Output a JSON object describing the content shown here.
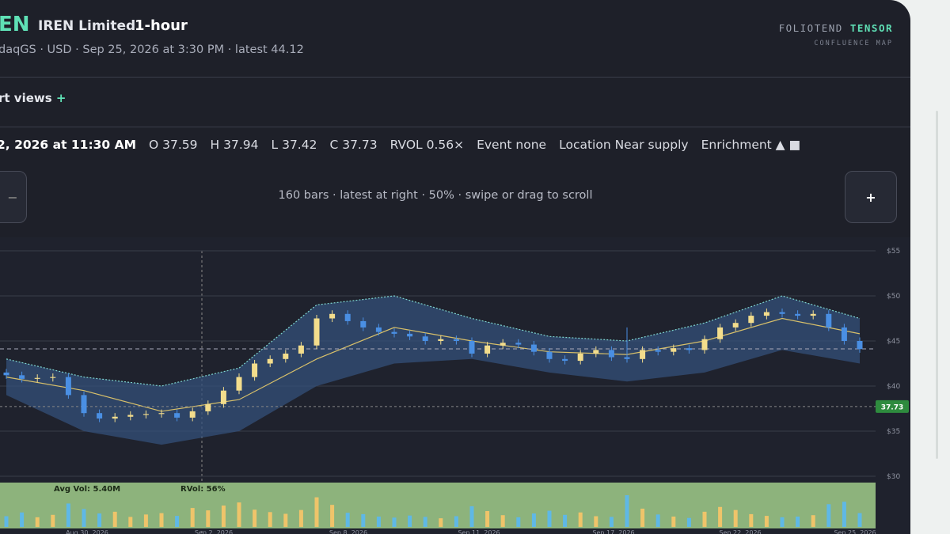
{
  "header": {
    "ticker": "EN",
    "name": "IREN Limited",
    "interval": "1-hour",
    "subtitle": "daqGS · USD · Sep 25, 2026 at 3:30 PM · latest 44.12",
    "brand_a": "FOLIOTEND",
    "brand_b": "TENSOR",
    "brand_sub": "CONFLUENCE MAP"
  },
  "views": {
    "label": "rt views",
    "plus": "+"
  },
  "info_row": [
    "2, 2026 at 11:30 AM",
    "O 37.59",
    "H 37.94",
    "L 37.42",
    "C 37.73",
    "RVOL 0.56×",
    "Event none",
    "Location Near supply",
    "Enrichment ▲ ■"
  ],
  "controls": {
    "left": "−",
    "hint": "160 bars · latest at right · 50% · swipe or drag to scroll",
    "right": "+"
  },
  "chart_data": {
    "type": "candlestick",
    "up_color": "#f3dd8c",
    "down_color": "#4a8fe3",
    "open": [
      41.5,
      41.2,
      40.8,
      40.9,
      41.0,
      39.0,
      37.0,
      36.4,
      36.6,
      36.8,
      36.9,
      37.0,
      36.5,
      37.2,
      38.0,
      39.5,
      41.0,
      42.5,
      43.0,
      43.6,
      44.5,
      47.5,
      48.0,
      47.2,
      46.5,
      46.0,
      45.8,
      45.5,
      45.0,
      45.2,
      45.0,
      43.6,
      44.5,
      44.8,
      44.6,
      43.8,
      43.0,
      42.8,
      43.6,
      44.0,
      43.2,
      43.0,
      44.0,
      43.8,
      44.2,
      44.0,
      45.2,
      46.5,
      47.0,
      47.8,
      48.2,
      48.0,
      47.8,
      48.0,
      46.5,
      45.0
    ],
    "high": [
      41.9,
      41.6,
      41.3,
      41.4,
      41.4,
      39.4,
      37.4,
      37.0,
      37.2,
      37.3,
      37.4,
      37.4,
      37.6,
      38.4,
      39.9,
      41.4,
      42.9,
      43.4,
      44.0,
      44.9,
      47.9,
      48.4,
      48.4,
      47.6,
      46.9,
      46.4,
      46.2,
      45.9,
      45.6,
      45.6,
      45.4,
      44.9,
      45.2,
      45.2,
      45.0,
      44.2,
      43.4,
      44.0,
      44.4,
      44.4,
      46.5,
      44.4,
      44.4,
      44.6,
      44.6,
      45.6,
      46.9,
      47.4,
      48.2,
      48.6,
      48.6,
      48.4,
      48.4,
      48.4,
      46.9,
      45.4
    ],
    "low": [
      40.8,
      40.4,
      40.4,
      40.5,
      38.6,
      36.6,
      36.0,
      36.0,
      36.2,
      36.4,
      36.5,
      36.1,
      36.1,
      36.8,
      37.6,
      39.1,
      40.6,
      42.1,
      42.6,
      43.2,
      44.1,
      47.1,
      46.8,
      46.1,
      45.6,
      45.4,
      45.1,
      44.6,
      44.6,
      44.6,
      43.2,
      43.2,
      44.1,
      44.2,
      43.4,
      42.6,
      42.4,
      42.4,
      43.2,
      42.8,
      42.6,
      42.6,
      43.4,
      43.4,
      43.6,
      43.6,
      44.8,
      46.1,
      46.6,
      47.4,
      47.6,
      47.4,
      47.4,
      46.1,
      44.6,
      43.7
    ],
    "close": [
      41.2,
      40.8,
      40.9,
      41.0,
      39.0,
      37.0,
      36.4,
      36.6,
      36.8,
      36.9,
      37.0,
      36.5,
      37.2,
      38.0,
      39.5,
      41.0,
      42.5,
      43.0,
      43.6,
      44.5,
      47.5,
      48.0,
      47.2,
      46.5,
      46.0,
      45.8,
      45.5,
      45.0,
      45.2,
      45.0,
      43.6,
      44.5,
      44.8,
      44.6,
      43.8,
      43.0,
      42.8,
      43.6,
      44.0,
      43.2,
      43.0,
      44.0,
      43.8,
      44.2,
      44.0,
      45.2,
      46.5,
      47.0,
      47.8,
      48.2,
      48.0,
      47.8,
      48.0,
      46.5,
      45.0,
      44.1
    ],
    "band": {
      "x": [
        0,
        5,
        10,
        15,
        20,
        25,
        30,
        35,
        40,
        45,
        50,
        55
      ],
      "upper": [
        43,
        41,
        40,
        42,
        49,
        50,
        47.5,
        45.5,
        45,
        47,
        50,
        47.5
      ],
      "lower": [
        39,
        35,
        33.5,
        35,
        40,
        42.5,
        43,
        41.5,
        40.5,
        41.5,
        44,
        42.5
      ],
      "ma": [
        41,
        39.5,
        37.2,
        38.5,
        43,
        46.5,
        45,
        43.8,
        43.5,
        45,
        47.5,
        45.8
      ]
    },
    "ylim": [
      30,
      55
    ],
    "yticks": [
      {
        "value": 30,
        "label": "$30"
      },
      {
        "value": 35,
        "label": "$35"
      },
      {
        "value": 40,
        "label": "$40"
      },
      {
        "value": 45,
        "label": "$45"
      },
      {
        "value": 50,
        "label": "$50"
      },
      {
        "value": 55,
        "label": "$55"
      }
    ],
    "last_price": 44.12,
    "cursor_price": 37.73,
    "grid": true
  },
  "volume": {
    "avg_label": "Avg Vol: 5.40M",
    "rvol_label": "RVol: 56%",
    "values": [
      3.1,
      4.2,
      2.8,
      3.5,
      6.8,
      5.2,
      3.9,
      4.4,
      2.9,
      3.6,
      4.0,
      3.2,
      5.5,
      4.8,
      6.2,
      7.1,
      5.0,
      4.3,
      3.8,
      4.9,
      8.6,
      6.4,
      4.1,
      3.7,
      3.0,
      2.7,
      3.3,
      2.9,
      2.5,
      3.1,
      6.0,
      4.6,
      3.4,
      2.8,
      3.9,
      4.7,
      3.5,
      4.2,
      3.1,
      2.9,
      9.2,
      5.3,
      3.6,
      3.0,
      2.6,
      4.4,
      5.8,
      4.9,
      3.7,
      3.2,
      2.8,
      3.0,
      3.4,
      6.6,
      7.3,
      4.0
    ]
  },
  "x_labels": [
    "Aug 30, 2026",
    "Sep 2, 2026",
    "Sep 8, 2026",
    "Sep 11, 2026",
    "Sep 17, 2026",
    "Sep 22, 2026",
    "Sep 25, 2026"
  ]
}
